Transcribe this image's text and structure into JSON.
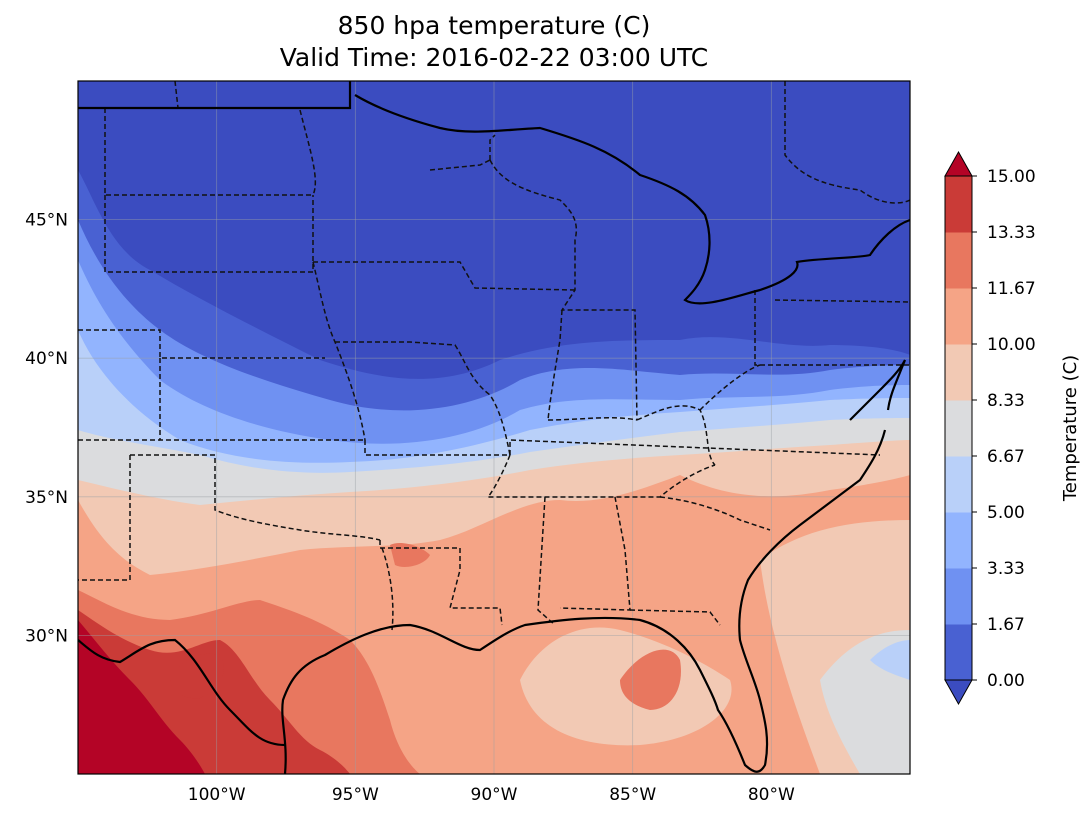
{
  "title": {
    "line1": "850 hpa temperature (C)",
    "line2": "Valid Time: 2016-02-22 03:00 UTC"
  },
  "map": {
    "lon_range": [
      -105,
      -75
    ],
    "lat_range": [
      25,
      50
    ],
    "lon_ticks": [
      {
        "value": -100,
        "label": "100°W"
      },
      {
        "value": -95,
        "label": "95°W"
      },
      {
        "value": -90,
        "label": "90°W"
      },
      {
        "value": -85,
        "label": "85°W"
      },
      {
        "value": -80,
        "label": "80°W"
      }
    ],
    "lat_ticks": [
      {
        "value": 30,
        "label": "30°N"
      },
      {
        "value": 35,
        "label": "35°N"
      },
      {
        "value": 40,
        "label": "40°N"
      },
      {
        "value": 45,
        "label": "45°N"
      }
    ],
    "gridlines": true,
    "features": [
      "coastline",
      "state-borders",
      "country-borders"
    ]
  },
  "colorbar": {
    "label": "Temperature (C)",
    "extend": "both",
    "levels": [
      "0.00",
      "1.67",
      "3.33",
      "5.00",
      "6.67",
      "8.33",
      "10.00",
      "11.67",
      "13.33",
      "15.00"
    ],
    "colors": [
      "#4961d2",
      "#6f91f2",
      "#92b4fe",
      "#b9d0f9",
      "#dbdcde",
      "#f2c9b4",
      "#f5a486",
      "#e8775f",
      "#ca3b37"
    ],
    "under_color": "#3b4cc0",
    "over_color": "#b40426"
  }
}
